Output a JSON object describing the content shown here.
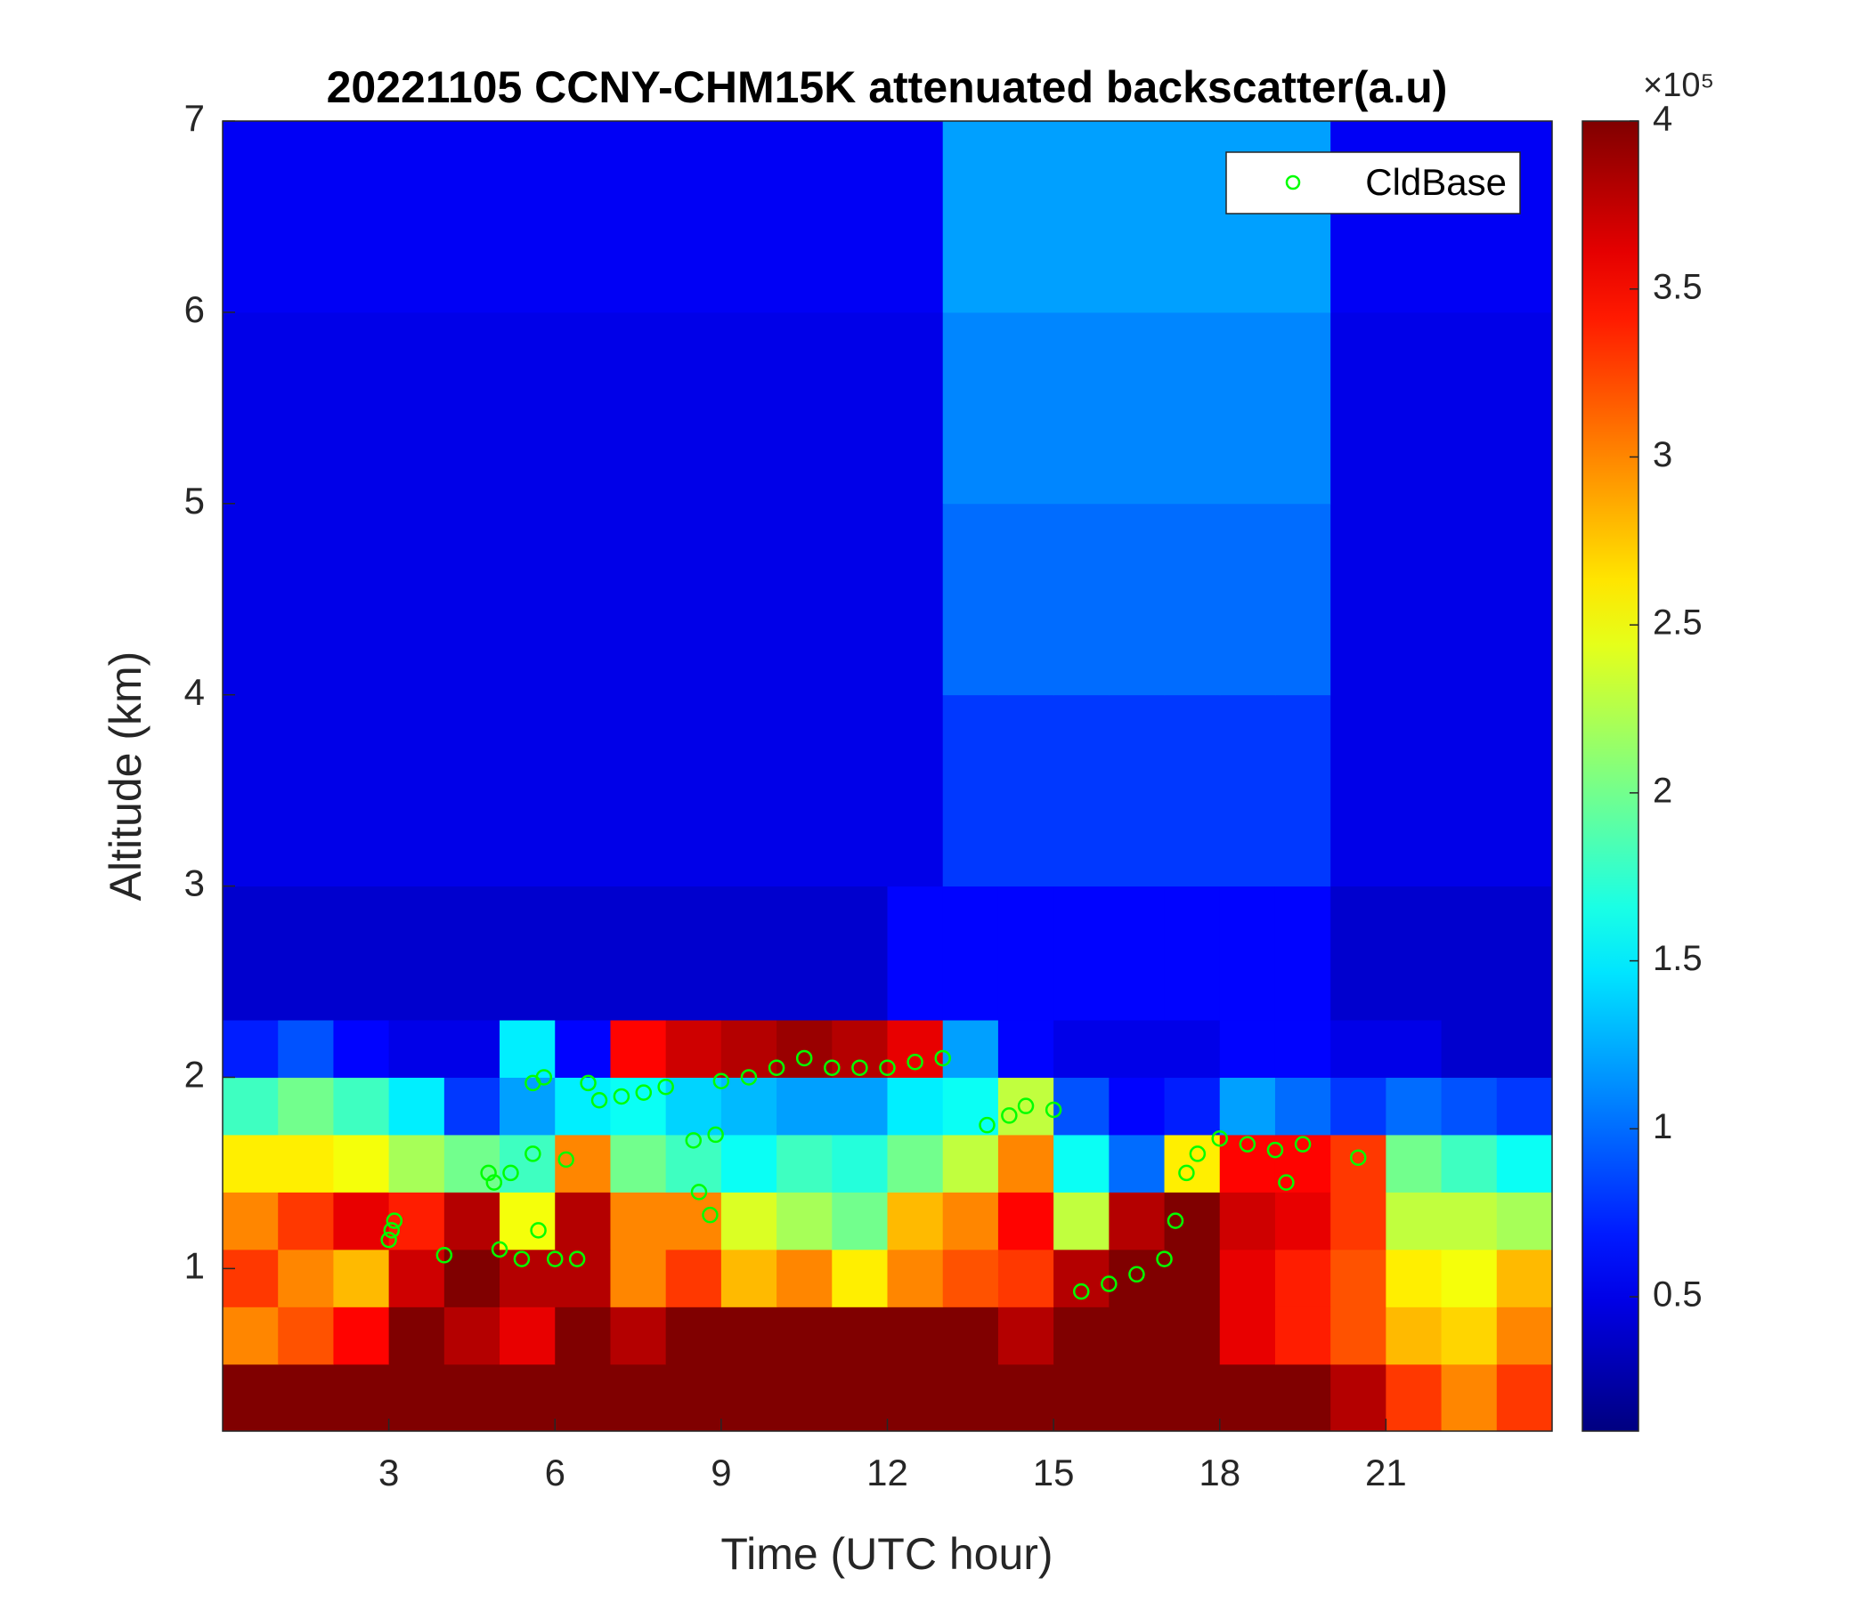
{
  "chart_data": {
    "type": "heatmap",
    "title": "20221105 CCNY-CHM15K attenuated backscatter(a.u)",
    "x_label": "Time (UTC hour)",
    "y_label": "Altitude (km)",
    "xlim": [
      0,
      24
    ],
    "ylim": [
      0.15,
      7
    ],
    "xticks": [
      3,
      6,
      9,
      12,
      15,
      18,
      21
    ],
    "yticks": [
      1,
      2,
      3,
      4,
      5,
      6,
      7
    ],
    "x_edges": [
      0,
      1,
      2,
      3,
      4,
      5,
      6,
      7,
      8,
      9,
      10,
      11,
      12,
      13,
      14,
      15,
      16,
      17,
      18,
      19,
      20,
      21,
      22,
      23,
      24
    ],
    "y_edges": [
      0.15,
      0.5,
      0.8,
      1.1,
      1.4,
      1.7,
      2.0,
      2.3,
      3,
      4,
      5,
      6,
      7
    ],
    "z": [
      [
        400000,
        400000,
        400000,
        400000,
        400000,
        400000,
        400000,
        400000,
        400000,
        400000,
        400000,
        400000,
        400000,
        400000,
        400000,
        400000,
        400000,
        400000,
        400000,
        400000,
        380000,
        330000,
        300000,
        330000
      ],
      [
        300000,
        320000,
        350000,
        400000,
        380000,
        360000,
        400000,
        380000,
        400000,
        400000,
        400000,
        400000,
        400000,
        400000,
        380000,
        400000,
        400000,
        400000,
        360000,
        340000,
        320000,
        280000,
        270000,
        300000
      ],
      [
        330000,
        300000,
        280000,
        370000,
        400000,
        380000,
        380000,
        300000,
        330000,
        280000,
        300000,
        260000,
        300000,
        320000,
        330000,
        380000,
        400000,
        400000,
        360000,
        340000,
        320000,
        260000,
        250000,
        280000
      ],
      [
        300000,
        330000,
        360000,
        340000,
        380000,
        250000,
        380000,
        300000,
        300000,
        240000,
        220000,
        200000,
        280000,
        300000,
        350000,
        230000,
        380000,
        400000,
        370000,
        360000,
        330000,
        230000,
        230000,
        220000
      ],
      [
        260000,
        260000,
        250000,
        220000,
        200000,
        180000,
        300000,
        200000,
        180000,
        160000,
        180000,
        170000,
        200000,
        230000,
        300000,
        160000,
        100000,
        260000,
        350000,
        350000,
        330000,
        200000,
        180000,
        160000
      ],
      [
        180000,
        200000,
        180000,
        150000,
        80000,
        120000,
        150000,
        160000,
        140000,
        130000,
        120000,
        120000,
        150000,
        160000,
        230000,
        90000,
        60000,
        70000,
        120000,
        100000,
        80000,
        100000,
        90000,
        80000
      ],
      [
        70000,
        90000,
        60000,
        50000,
        50000,
        150000,
        60000,
        350000,
        370000,
        380000,
        390000,
        380000,
        360000,
        120000,
        60000,
        50000,
        50000,
        50000,
        60000,
        60000,
        50000,
        50000,
        40000,
        40000
      ],
      [
        40000,
        40000,
        40000,
        40000,
        40000,
        40000,
        40000,
        40000,
        40000,
        40000,
        40000,
        40000,
        60000,
        60000,
        60000,
        60000,
        60000,
        60000,
        60000,
        60000,
        40000,
        40000,
        40000,
        40000
      ],
      [
        50000,
        50000,
        50000,
        50000,
        50000,
        50000,
        50000,
        50000,
        50000,
        50000,
        50000,
        50000,
        50000,
        80000,
        80000,
        80000,
        80000,
        80000,
        80000,
        80000,
        50000,
        50000,
        50000,
        50000
      ],
      [
        50000,
        50000,
        50000,
        50000,
        50000,
        50000,
        50000,
        50000,
        50000,
        50000,
        50000,
        50000,
        50000,
        100000,
        100000,
        100000,
        100000,
        100000,
        100000,
        100000,
        50000,
        50000,
        50000,
        50000
      ],
      [
        50000,
        50000,
        50000,
        50000,
        50000,
        50000,
        50000,
        50000,
        50000,
        50000,
        50000,
        50000,
        50000,
        110000,
        110000,
        110000,
        110000,
        110000,
        110000,
        110000,
        50000,
        50000,
        50000,
        50000
      ],
      [
        55000,
        55000,
        55000,
        55000,
        55000,
        55000,
        55000,
        55000,
        55000,
        55000,
        55000,
        55000,
        55000,
        120000,
        120000,
        120000,
        120000,
        120000,
        120000,
        120000,
        55000,
        55000,
        55000,
        55000
      ]
    ],
    "clim": [
      10000,
      400000
    ],
    "colormap": "jet",
    "colorbar_ticks": [
      {
        "value": 50000,
        "label": "0.5"
      },
      {
        "value": 100000,
        "label": "1"
      },
      {
        "value": 150000,
        "label": "1.5"
      },
      {
        "value": 200000,
        "label": "2"
      },
      {
        "value": 250000,
        "label": "2.5"
      },
      {
        "value": 300000,
        "label": "3"
      },
      {
        "value": 350000,
        "label": "3.5"
      },
      {
        "value": 400000,
        "label": "4"
      }
    ],
    "colorbar_multiplier": "×10⁵",
    "legend": "northeast",
    "series": [
      {
        "name": "CldBase",
        "color": "#00ff00",
        "x": [
          3.0,
          3.05,
          3.1,
          4.0,
          4.8,
          4.9,
          5.0,
          5.2,
          5.4,
          5.6,
          5.7,
          5.6,
          5.8,
          6.0,
          6.2,
          6.4,
          6.6,
          6.8,
          7.2,
          7.6,
          8.0,
          8.5,
          8.6,
          8.8,
          8.9,
          9.0,
          9.5,
          10.0,
          10.5,
          11.0,
          11.5,
          12.0,
          12.5,
          13.0,
          13.8,
          14.2,
          14.5,
          15.0,
          15.5,
          16.0,
          16.5,
          17.0,
          17.2,
          17.4,
          17.6,
          18.0,
          18.5,
          19.0,
          19.2,
          19.5,
          20.5
        ],
        "y": [
          1.15,
          1.2,
          1.25,
          1.07,
          1.5,
          1.45,
          1.1,
          1.5,
          1.05,
          1.6,
          1.2,
          1.97,
          2.0,
          1.05,
          1.57,
          1.05,
          1.97,
          1.88,
          1.9,
          1.92,
          1.95,
          1.67,
          1.4,
          1.28,
          1.7,
          1.98,
          2.0,
          2.05,
          2.1,
          2.05,
          2.05,
          2.05,
          2.08,
          2.1,
          1.75,
          1.8,
          1.85,
          1.83,
          0.88,
          0.92,
          0.97,
          1.05,
          1.25,
          1.5,
          1.6,
          1.68,
          1.65,
          1.62,
          1.45,
          1.65,
          1.58
        ]
      }
    ]
  }
}
